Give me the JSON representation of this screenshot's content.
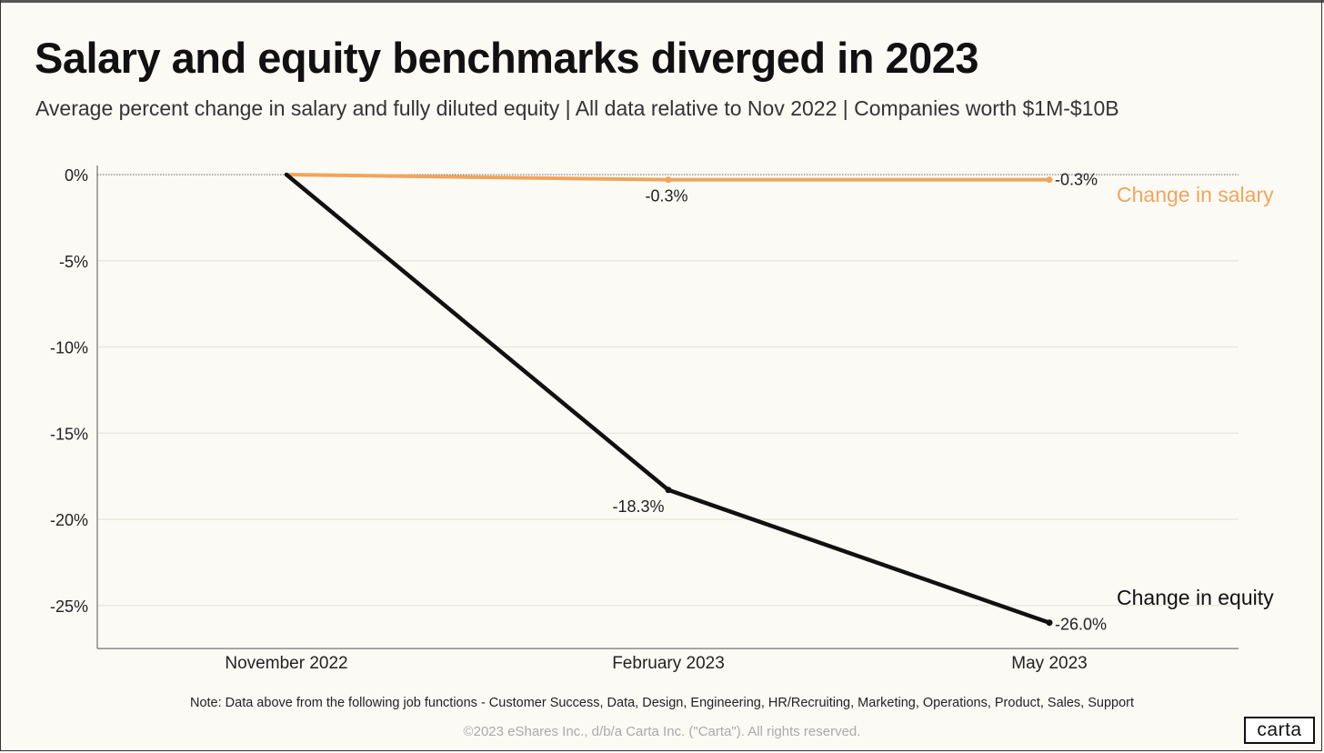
{
  "title": "Salary and equity benchmarks diverged in 2023",
  "subtitle": "Average percent change in salary and  fully diluted equity  |  All data relative to Nov 2022  |  Companies worth $1M-$10B",
  "note": "Note:  Data above from the following job functions - Customer Success, Data, Design, Engineering, HR/Recruiting, Marketing, Operations, Product,  Sales, Support",
  "copyright": "©2023 eShares Inc., d/b/a Carta Inc. (\"Carta\"). All rights reserved.",
  "logo": "carta",
  "chart_data": {
    "type": "line",
    "categories": [
      "November 2022",
      "February 2023",
      "May 2023"
    ],
    "y_ticks": [
      0,
      -5,
      -10,
      -15,
      -20,
      -25
    ],
    "y_tick_labels": [
      "0%",
      "-5%",
      "-10%",
      "-15%",
      "-20%",
      "-25%"
    ],
    "ylim": [
      -27.5,
      0
    ],
    "grid": true,
    "series": [
      {
        "name": "Change in salary",
        "values": [
          0,
          -0.3,
          -0.3
        ],
        "data_labels": [
          "",
          "-0.3%",
          "-0.3%"
        ],
        "color": "#f0a55c"
      },
      {
        "name": "Change in equity",
        "values": [
          0,
          -18.3,
          -26.0
        ],
        "data_labels": [
          "",
          "-18.3%",
          "-26.0%"
        ],
        "color": "#111111"
      }
    ]
  }
}
